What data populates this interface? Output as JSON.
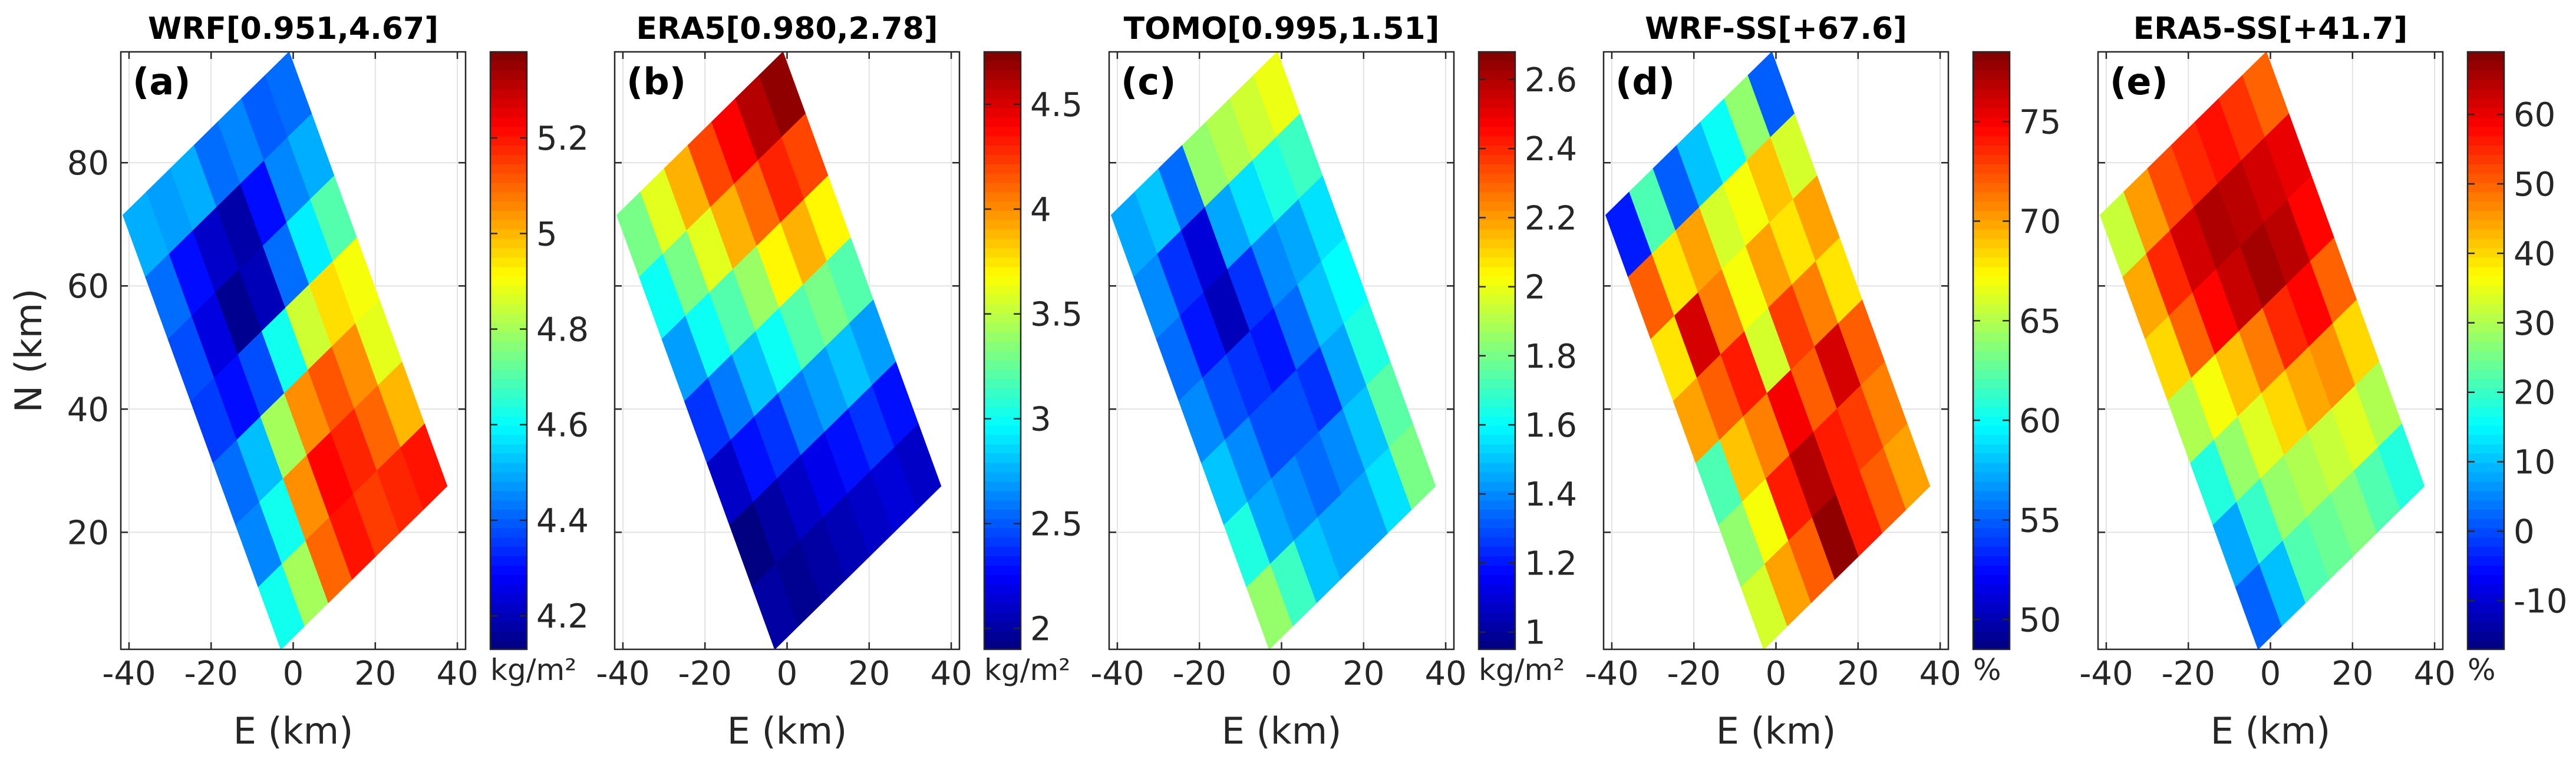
{
  "figure": {
    "x_axis_label": "E (km)",
    "y_axis_label": "N (km)",
    "x_ticks": [
      -40,
      -20,
      0,
      20,
      40
    ],
    "y_ticks": [
      20,
      40,
      60,
      80
    ]
  },
  "chart_data": [
    {
      "type": "heatmap",
      "panel": "(a)",
      "title": "WRF[0.951,4.67]",
      "xlabel": "E (km)",
      "ylabel": "N (km)",
      "xlim": [
        -42,
        42
      ],
      "ylim": [
        1,
        98
      ],
      "colorbar_ticks": [
        4.2,
        4.4,
        4.6,
        4.8,
        5,
        5.2
      ],
      "colorbar_range": [
        4.13,
        5.38
      ],
      "colorbar_unit": "kg/m²",
      "grid_rows": 7,
      "grid_cols": 7,
      "grid": [
        [
          4.5,
          4.48,
          4.5,
          4.42,
          4.45,
          4.4,
          4.42
        ],
        [
          4.42,
          4.3,
          4.22,
          4.18,
          4.3,
          4.45,
          4.5
        ],
        [
          4.38,
          4.25,
          4.15,
          4.2,
          4.42,
          4.58,
          4.7
        ],
        [
          4.36,
          4.3,
          4.38,
          4.62,
          4.85,
          4.95,
          4.9
        ],
        [
          4.42,
          4.52,
          4.8,
          5.05,
          5.12,
          5.05,
          4.88
        ],
        [
          4.45,
          4.62,
          5.05,
          5.22,
          5.18,
          5.1,
          5.0
        ],
        [
          4.62,
          4.8,
          5.1,
          5.2,
          5.15,
          5.18,
          5.2
        ]
      ]
    },
    {
      "type": "heatmap",
      "panel": "(b)",
      "title": "ERA5[0.980,2.78]",
      "xlabel": "E (km)",
      "ylabel": "",
      "xlim": [
        -42,
        42
      ],
      "ylim": [
        1,
        98
      ],
      "colorbar_ticks": [
        2,
        2.5,
        3,
        3.5,
        4,
        4.5
      ],
      "colorbar_range": [
        1.9,
        4.75
      ],
      "colorbar_unit": "kg/m²",
      "grid_rows": 7,
      "grid_cols": 7,
      "grid": [
        [
          3.3,
          3.6,
          3.9,
          4.2,
          4.4,
          4.6,
          4.7
        ],
        [
          3.0,
          3.3,
          3.6,
          3.9,
          4.1,
          4.3,
          4.2
        ],
        [
          2.7,
          3.0,
          3.2,
          3.4,
          3.7,
          3.9,
          3.7
        ],
        [
          2.4,
          2.6,
          2.8,
          3.0,
          3.2,
          3.3,
          3.2
        ],
        [
          2.1,
          2.3,
          2.4,
          2.6,
          2.7,
          2.8,
          2.7
        ],
        [
          1.9,
          2.0,
          2.1,
          2.2,
          2.3,
          2.4,
          2.3
        ],
        [
          2.0,
          1.95,
          2.0,
          2.05,
          2.1,
          2.15,
          2.1
        ]
      ]
    },
    {
      "type": "heatmap",
      "panel": "(c)",
      "title": "TOMO[0.995,1.51]",
      "xlabel": "E (km)",
      "ylabel": "",
      "xlim": [
        -42,
        42
      ],
      "ylim": [
        1,
        98
      ],
      "colorbar_ticks": [
        1,
        1.2,
        1.4,
        1.6,
        1.8,
        2,
        2.2,
        2.4,
        2.6
      ],
      "colorbar_range": [
        0.95,
        2.68
      ],
      "colorbar_unit": "kg/m²",
      "grid_rows": 7,
      "grid_cols": 7,
      "grid": [
        [
          1.45,
          1.5,
          1.35,
          1.85,
          1.9,
          1.95,
          2.0
        ],
        [
          1.4,
          1.25,
          1.1,
          1.45,
          1.55,
          1.65,
          1.7
        ],
        [
          1.35,
          1.2,
          1.05,
          1.25,
          1.4,
          1.45,
          1.55
        ],
        [
          1.4,
          1.3,
          1.25,
          1.2,
          1.35,
          1.5,
          1.6
        ],
        [
          1.5,
          1.4,
          1.3,
          1.3,
          1.25,
          1.45,
          1.65
        ],
        [
          1.65,
          1.45,
          1.4,
          1.35,
          1.4,
          1.5,
          1.75
        ],
        [
          1.85,
          1.7,
          1.5,
          1.45,
          1.45,
          1.55,
          1.8
        ]
      ]
    },
    {
      "type": "heatmap",
      "panel": "(d)",
      "title": "WRF-SS[+67.6]",
      "xlabel": "E (km)",
      "ylabel": "",
      "xlim": [
        -42,
        42
      ],
      "ylim": [
        1,
        98
      ],
      "colorbar_ticks": [
        50,
        55,
        60,
        65,
        70,
        75
      ],
      "colorbar_range": [
        48.5,
        78.5
      ],
      "colorbar_unit": "%",
      "grid_rows": 7,
      "grid_cols": 7,
      "grid": [
        [
          53,
          62,
          55,
          58,
          60,
          64,
          55
        ],
        [
          72,
          68,
          70,
          66,
          67,
          69,
          66
        ],
        [
          68,
          76,
          71,
          67,
          70,
          68,
          70
        ],
        [
          70,
          72,
          74,
          66,
          73,
          71,
          68
        ],
        [
          62,
          69,
          71,
          75,
          72,
          76,
          72
        ],
        [
          64,
          67,
          74,
          77,
          74,
          73,
          71
        ],
        [
          66,
          70,
          72,
          78,
          74,
          72,
          70
        ]
      ]
    },
    {
      "type": "heatmap",
      "panel": "(e)",
      "title": "ERA5-SS[+41.7]",
      "xlabel": "E (km)",
      "ylabel": "",
      "xlim": [
        -42,
        42
      ],
      "ylim": [
        1,
        98
      ],
      "colorbar_ticks": [
        -10,
        0,
        10,
        20,
        30,
        40,
        50,
        60
      ],
      "colorbar_range": [
        -17,
        69
      ],
      "colorbar_unit": "%",
      "grid_rows": 7,
      "grid_cols": 7,
      "grid": [
        [
          32,
          45,
          52,
          55,
          57,
          54,
          50
        ],
        [
          44,
          55,
          62,
          65,
          64,
          62,
          60
        ],
        [
          40,
          50,
          58,
          63,
          66,
          64,
          58
        ],
        [
          30,
          36,
          42,
          48,
          55,
          58,
          50
        ],
        [
          18,
          28,
          34,
          40,
          44,
          46,
          40
        ],
        [
          8,
          20,
          28,
          30,
          32,
          34,
          30
        ],
        [
          2,
          10,
          22,
          24,
          26,
          22,
          18
        ]
      ]
    }
  ]
}
